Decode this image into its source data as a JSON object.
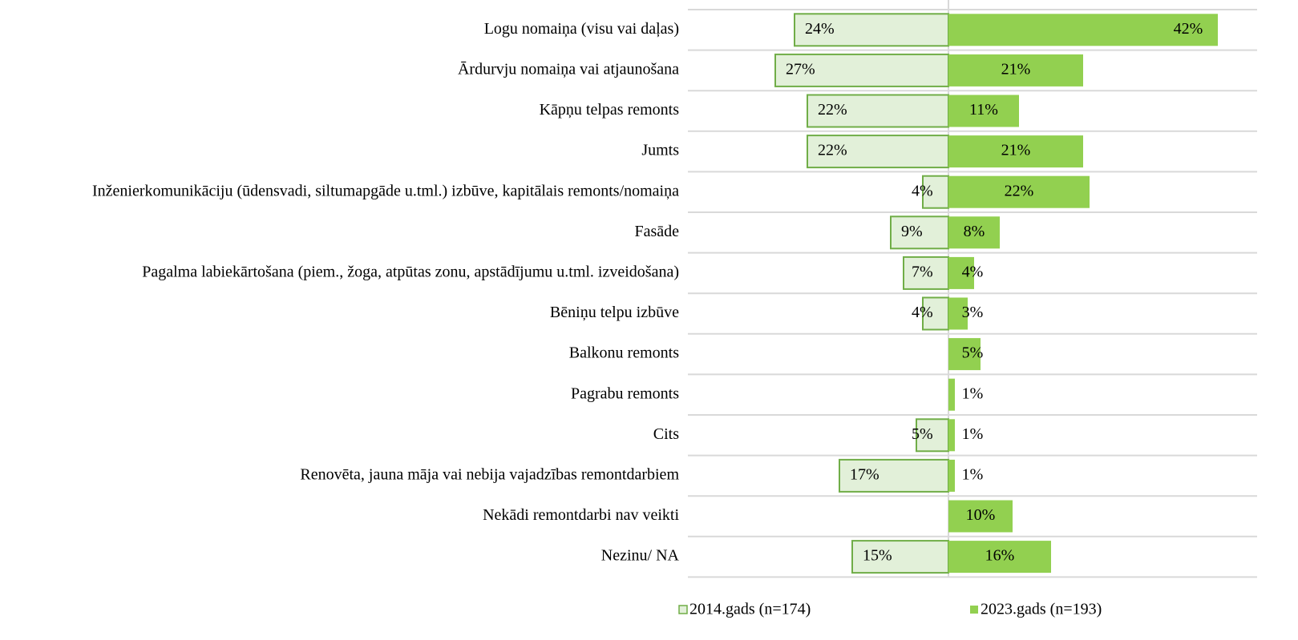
{
  "chart_data": {
    "type": "butterfly-bar",
    "categories": [
      "Logu nomaiņa (visu vai daļas)",
      "Ārdurvju nomaiņa vai atjaunošana",
      "Kāpņu telpas remonts",
      "Jumts",
      "Inženierkomunikāciju (ūdensvadi, siltumapgāde u.tml.)  izbūve, kapitālais remonts/nomaiņa",
      "Fasāde",
      "Pagalma labiekārtošana (piem., žoga, atpūtas zonu, apstādījumu u.tml. izveidošana)",
      "Bēniņu telpu izbūve",
      "Balkonu remonts",
      "Pagrabu remonts",
      "Cits",
      "Renovēta, jauna māja vai nebija vajadzības remontdarbiem",
      "Nekādi remontdarbi nav veikti",
      "Nezinu/ NA"
    ],
    "series": [
      {
        "name": "2014.gads (n=174)",
        "color": "#e2f0d9",
        "stroke": "#70ad47",
        "side": "left",
        "values": [
          24,
          27,
          22,
          22,
          4,
          9,
          7,
          4,
          null,
          null,
          5,
          17,
          null,
          15
        ],
        "value_labels": [
          "24%",
          "27%",
          "22%",
          "22%",
          "4%",
          "9%",
          "7%",
          "4%",
          null,
          null,
          "5%",
          "17%",
          null,
          "15%"
        ]
      },
      {
        "name": "2023.gads (n=193)",
        "color": "#92d050",
        "side": "right",
        "values": [
          42,
          21,
          11,
          21,
          22,
          8,
          4,
          3,
          5,
          1,
          1,
          1,
          10,
          16
        ],
        "value_labels": [
          "42%",
          "21%",
          "11%",
          "21%",
          "22%",
          "8%",
          "4%",
          "3%",
          "5%",
          "1%",
          "1%",
          "1%",
          "10%",
          "16%"
        ]
      }
    ]
  }
}
